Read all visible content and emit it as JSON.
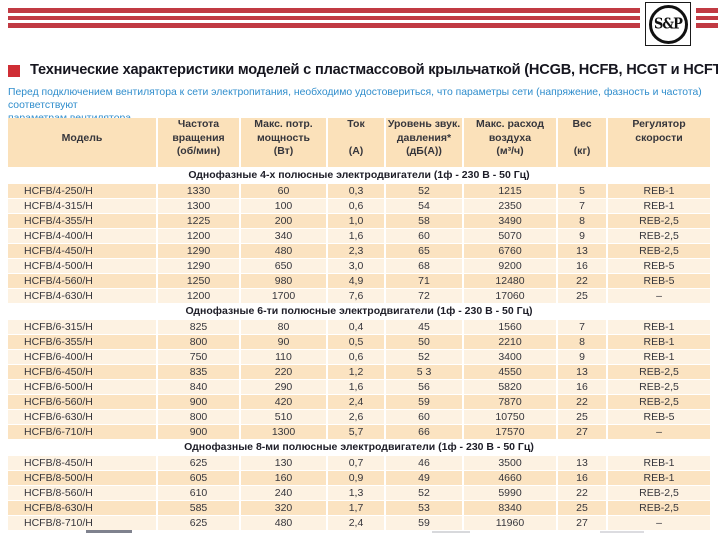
{
  "colors": {
    "brand_red": "#c13a43",
    "bullet_red": "#cf2e35",
    "intro_blue": "#2f8dcc",
    "header_bg": "#fbe1ba",
    "row_dark": "#fbe3c1",
    "row_light": "#fdf2e2"
  },
  "brand": {
    "logo_text": "S&P"
  },
  "page": {
    "title": "Технические характеристики моделей с пластмассовой крыльчаткой (HCGB, HCFB, HCGT и HCFT)",
    "intro_line1": "Перед подключением вентилятора к сети электропитания, необходимо удостовериться, что параметры сети (напряжение, фазность и частота) соответствуют",
    "intro_line2": "параметрам вентилятора."
  },
  "table": {
    "columns": [
      {
        "key": "model",
        "lines": [
          "",
          "Модель",
          ""
        ]
      },
      {
        "key": "rpm",
        "lines": [
          "Частота",
          "вращения",
          "(об/мин)"
        ]
      },
      {
        "key": "power",
        "lines": [
          "Макс. потр.",
          "мощность",
          "(Вт)"
        ]
      },
      {
        "key": "current",
        "lines": [
          "Ток",
          "",
          "(А)"
        ]
      },
      {
        "key": "noise",
        "lines": [
          "Уровень звук.",
          "давления*",
          "(дБ(А))"
        ]
      },
      {
        "key": "airflow",
        "lines": [
          "Макс. расход",
          "воздуха",
          "(м³/ч)"
        ]
      },
      {
        "key": "weight",
        "lines": [
          "Вес",
          "",
          "(кг)"
        ]
      },
      {
        "key": "regulator",
        "lines": [
          "Регулятор",
          "скорости",
          ""
        ]
      }
    ],
    "sections": [
      {
        "heading": "Однофазные 4-х полюсные электродвигатели (1ф - 230 В - 50 Гц)",
        "zebra_start": "dark",
        "rows": [
          [
            "HCFB/4-250/H",
            "1330",
            "60",
            "0,3",
            "52",
            "1215",
            "5",
            "REB-1"
          ],
          [
            "HCFB/4-315/H",
            "1300",
            "100",
            "0,6",
            "54",
            "2350",
            "7",
            "REB-1"
          ],
          [
            "HCFB/4-355/H",
            "1225",
            "200",
            "1,0",
            "58",
            "3490",
            "8",
            "REB-2,5"
          ],
          [
            "HCFB/4-400/H",
            "1200",
            "340",
            "1,6",
            "60",
            "5070",
            "9",
            "REB-2,5"
          ],
          [
            "HCFB/4-450/H",
            "1290",
            "480",
            "2,3",
            "65",
            "6760",
            "13",
            "REB-2,5"
          ],
          [
            "HCFB/4-500/H",
            "1290",
            "650",
            "3,0",
            "68",
            "9200",
            "16",
            "REB-5"
          ],
          [
            "HCFB/4-560/H",
            "1250",
            "980",
            "4,9",
            "71",
            "12480",
            "22",
            "REB-5"
          ],
          [
            "HCFB/4-630/H",
            "1200",
            "1700",
            "7,6",
            "72",
            "17060",
            "25",
            "–"
          ]
        ]
      },
      {
        "heading": "Однофазные 6-ти полюсные электродвигатели (1ф - 230 В - 50 Гц)",
        "zebra_start": "light",
        "rows": [
          [
            "HCFB/6-315/H",
            "825",
            "80",
            "0,4",
            "45",
            "1560",
            "7",
            "REB-1"
          ],
          [
            "HCFB/6-355/H",
            "800",
            "90",
            "0,5",
            "50",
            "2210",
            "8",
            "REB-1"
          ],
          [
            "HCFB/6-400/H",
            "750",
            "110",
            "0,6",
            "52",
            "3400",
            "9",
            "REB-1"
          ],
          [
            "HCFB/6-450/H",
            "835",
            "220",
            "1,2",
            "5 3",
            "4550",
            "13",
            "REB-2,5"
          ],
          [
            "HCFB/6-500/H",
            "840",
            "290",
            "1,6",
            "56",
            "5820",
            "16",
            "REB-2,5"
          ],
          [
            "HCFB/6-560/H",
            "900",
            "420",
            "2,4",
            "59",
            "7870",
            "22",
            "REB-2,5"
          ],
          [
            "HCFB/6-630/H",
            "800",
            "510",
            "2,6",
            "60",
            "10750",
            "25",
            "REB-5"
          ],
          [
            "HCFB/6-710/H",
            "900",
            "1300",
            "5,7",
            "66",
            "17570",
            "27",
            "–"
          ]
        ]
      },
      {
        "heading": "Однофазные 8-ми полюсные электродвигатели (1ф - 230 В - 50 Гц)",
        "zebra_start": "light",
        "rows": [
          [
            "HCFB/8-450/H",
            "625",
            "130",
            "0,7",
            "46",
            "3500",
            "13",
            "REB-1"
          ],
          [
            "HCFB/8-500/H",
            "605",
            "160",
            "0,9",
            "49",
            "4660",
            "16",
            "REB-1"
          ],
          [
            "HCFB/8-560/H",
            "610",
            "240",
            "1,3",
            "52",
            "5990",
            "22",
            "REB-2,5"
          ],
          [
            "HCFB/8-630/H",
            "585",
            "320",
            "1,7",
            "53",
            "8340",
            "25",
            "REB-2,5"
          ],
          [
            "HCFB/8-710/H",
            "625",
            "480",
            "2,4",
            "59",
            "11960",
            "27",
            "–"
          ]
        ]
      }
    ]
  }
}
